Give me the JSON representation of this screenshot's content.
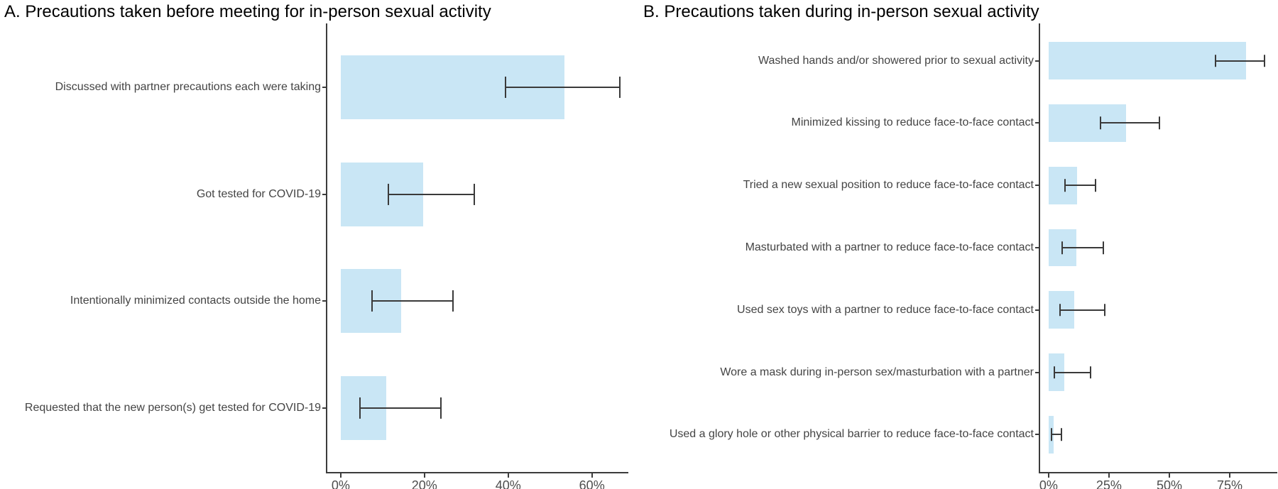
{
  "figure": {
    "background": "#ffffff",
    "bar_fill": "#c9e6f5",
    "errorbar_color": "#3a3a3a",
    "axis_color": "#3c3c3c",
    "tick_label_color": "#4d4d4d",
    "category_label_color": "#444444",
    "title_color": "#000000"
  },
  "chart_data": [
    {
      "type": "bar",
      "orientation": "horizontal",
      "title": "A. Precautions taken before meeting for in-person sexual activity",
      "xlabel": "",
      "ylabel": "",
      "grid": false,
      "legend": false,
      "error_bars": "95% CI",
      "x_domain": [
        -3.2,
        68.7
      ],
      "x_tick_values": [
        0,
        20,
        40,
        60
      ],
      "x_tick_labels": [
        "0%",
        "20%",
        "40%",
        "60%"
      ],
      "categories": [
        "Discussed with partner precautions each were taking",
        "Got tested for COVID-19",
        "Intentionally minimized contacts outside the home",
        "Requested that the new person(s) get tested for COVID-19"
      ],
      "values": [
        53.4,
        19.7,
        14.5,
        10.8
      ],
      "ci_low": [
        39.3,
        11.3,
        7.4,
        4.6
      ],
      "ci_high": [
        66.6,
        31.9,
        26.8,
        24.0
      ]
    },
    {
      "type": "bar",
      "orientation": "horizontal",
      "title": "B. Precautions taken during in-person sexual activity",
      "xlabel": "",
      "ylabel": "",
      "grid": false,
      "legend": false,
      "error_bars": "95% CI",
      "x_domain": [
        -3.5,
        94.7
      ],
      "x_tick_values": [
        0,
        25,
        50,
        75
      ],
      "x_tick_labels": [
        "0%",
        "25%",
        "50%",
        "75%"
      ],
      "categories": [
        "Washed hands and/or showered prior to sexual activity",
        "Minimized kissing to reduce face-to-face contact",
        "Tried a new sexual position to reduce face-to-face contact",
        "Masturbated with a partner to reduce face-to-face contact",
        "Used sex toys with a partner to reduce face-to-face contact",
        "Wore a mask during in-person sex/masturbation with a partner",
        "Used a glory hole or other physical barrier to reduce face-to-face contact"
      ],
      "values": [
        81.8,
        32.1,
        11.8,
        11.5,
        10.6,
        6.5,
        2.1
      ],
      "ci_low": [
        69.1,
        21.5,
        6.8,
        5.6,
        4.7,
        2.4,
        1.2
      ],
      "ci_high": [
        89.4,
        45.9,
        19.4,
        22.6,
        23.2,
        17.4,
        5.3
      ]
    }
  ]
}
